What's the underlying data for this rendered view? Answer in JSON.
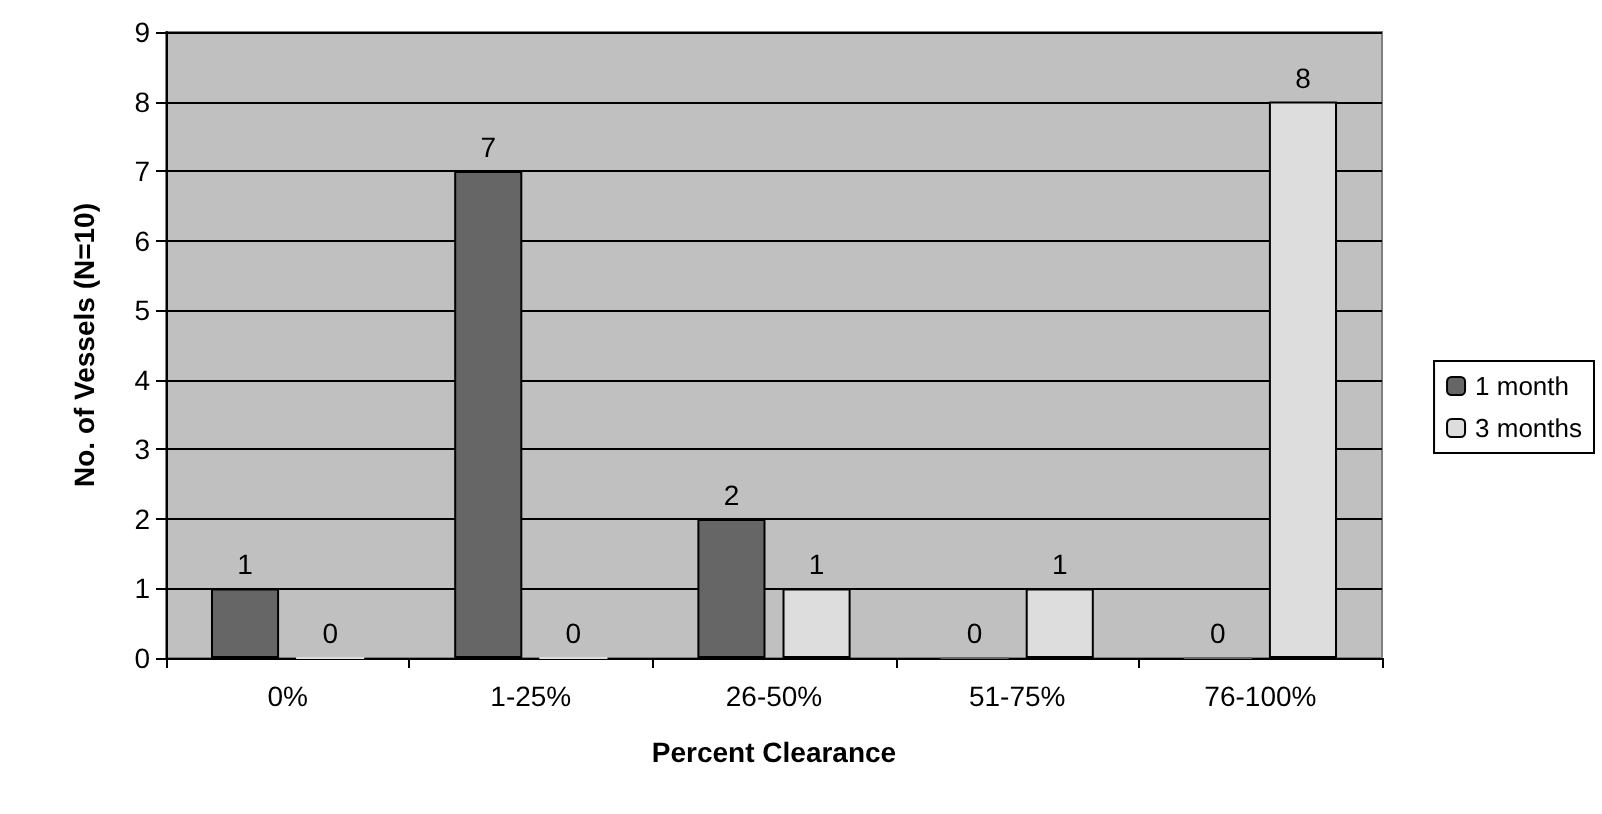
{
  "chart_data": {
    "type": "bar",
    "xlabel": "Percent Clearance",
    "ylabel": "No. of Vessels (N=10)",
    "categories": [
      "0%",
      "1-25%",
      "26-50%",
      "51-75%",
      "76-100%"
    ],
    "series": [
      {
        "name": "1 month",
        "color": "#666666",
        "values": [
          1,
          7,
          2,
          0,
          0
        ]
      },
      {
        "name": "3 months",
        "color": "#dddddd",
        "values": [
          0,
          0,
          1,
          1,
          8
        ]
      }
    ],
    "ylim": [
      0,
      9
    ],
    "yticks": [
      0,
      1,
      2,
      3,
      4,
      5,
      6,
      7,
      8,
      9
    ],
    "grid": "y",
    "legend": "right",
    "data_labels": true
  }
}
